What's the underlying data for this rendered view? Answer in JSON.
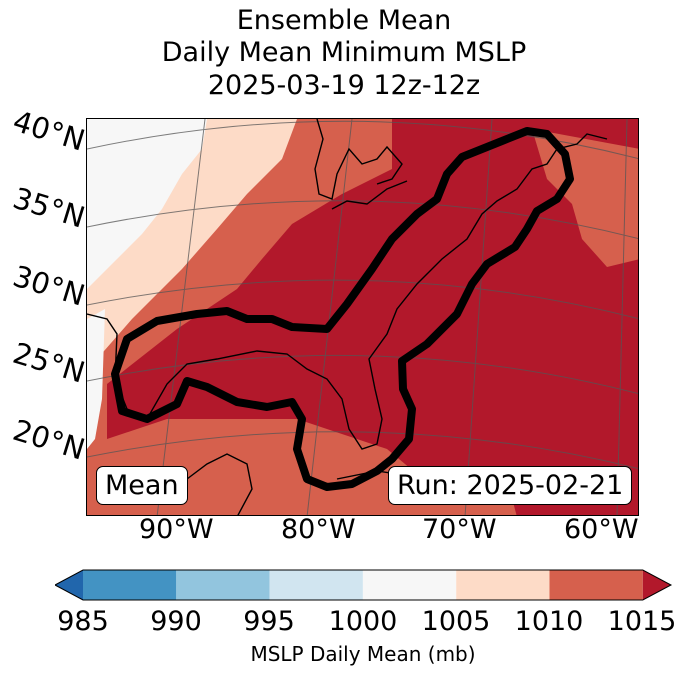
{
  "title": {
    "line1": "Ensemble Mean",
    "line2": "Daily Mean Minimum MSLP",
    "line3": "2025-03-19 12z-12z"
  },
  "map": {
    "latitude_labels": [
      "40°N",
      "35°N",
      "30°N",
      "25°N",
      "20°N"
    ],
    "longitude_labels": [
      "90°W",
      "80°W",
      "70°W",
      "60°W"
    ],
    "mean_label": "Mean",
    "run_label": "Run: 2025-02-21",
    "colors": {
      "c1000_1005": "#f7f7f7",
      "c1005_1010": "#fddbc7",
      "c1010_1015": "#d6604d",
      "c1015_plus": "#b2182b",
      "land_outline": "#000000",
      "contour": "#000000"
    }
  },
  "colorbar": {
    "ticks": [
      "985",
      "990",
      "995",
      "1000",
      "1005",
      "1010",
      "1015"
    ],
    "colors": [
      "#2166ac",
      "#4393c3",
      "#92c5de",
      "#d1e5f0",
      "#f7f7f7",
      "#fddbc7",
      "#d6604d",
      "#b2182b"
    ],
    "label": "MSLP Daily Mean (mb)"
  }
}
